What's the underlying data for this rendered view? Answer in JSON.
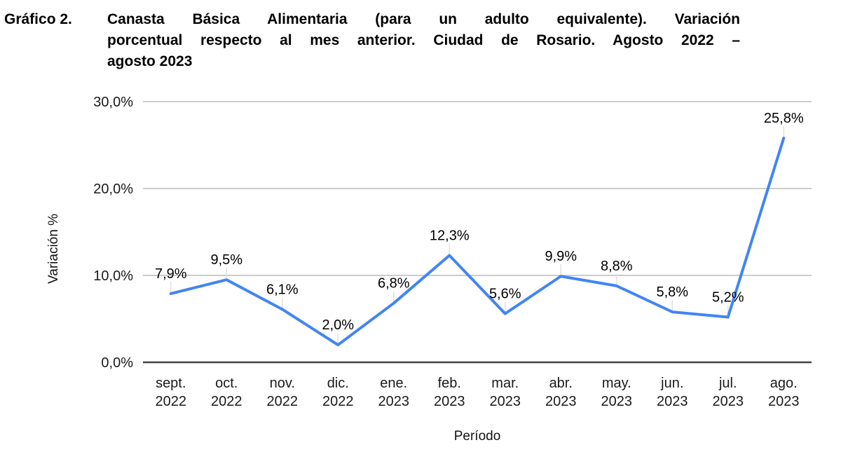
{
  "header": {
    "figure_label": "Gráfico 2.",
    "title_lines": [
      "Canasta Básica Alimentaria (para un adulto equivalente). Variación",
      "porcentual respecto al mes anterior. Ciudad de Rosario. Agosto 2022 –",
      "agosto 2023"
    ]
  },
  "chart_data": {
    "type": "line",
    "title": "Canasta Básica Alimentaria (para un adulto equivalente). Variación porcentual respecto al mes anterior. Ciudad de Rosario. Agosto 2022 – agosto 2023",
    "categories": [
      "sept. 2022",
      "oct. 2022",
      "nov. 2022",
      "dic. 2022",
      "ene. 2023",
      "feb. 2023",
      "mar. 2023",
      "abr. 2023",
      "may. 2023",
      "jun. 2023",
      "jul. 2023",
      "ago. 2023"
    ],
    "values": [
      7.9,
      9.5,
      6.1,
      2.0,
      6.8,
      12.3,
      5.6,
      9.9,
      8.8,
      5.8,
      5.2,
      25.8
    ],
    "point_labels": [
      "7,9%",
      "9,5%",
      "6,1%",
      "2,0%",
      "6,8%",
      "12,3%",
      "5,6%",
      "9,9%",
      "8,8%",
      "5,8%",
      "5,2%",
      "25,8%"
    ],
    "xlabel": "Período",
    "ylabel": "Variación %",
    "ylim": [
      0,
      30
    ],
    "y_ticks": [
      {
        "value": 0,
        "label": "0,0%"
      },
      {
        "value": 10,
        "label": "10,0%"
      },
      {
        "value": 20,
        "label": "20,0%"
      },
      {
        "value": 30,
        "label": "30,0%"
      }
    ],
    "grid": true,
    "legend": "none",
    "line_color": "#4285f4",
    "gridline_color": "#cccccc",
    "axis_line_color": "#424242",
    "leader_line_color": "#e0e0e0",
    "tick_label_color": "#1a1a1a",
    "data_label_color": "#000000",
    "axis_title_color": "#111111"
  }
}
